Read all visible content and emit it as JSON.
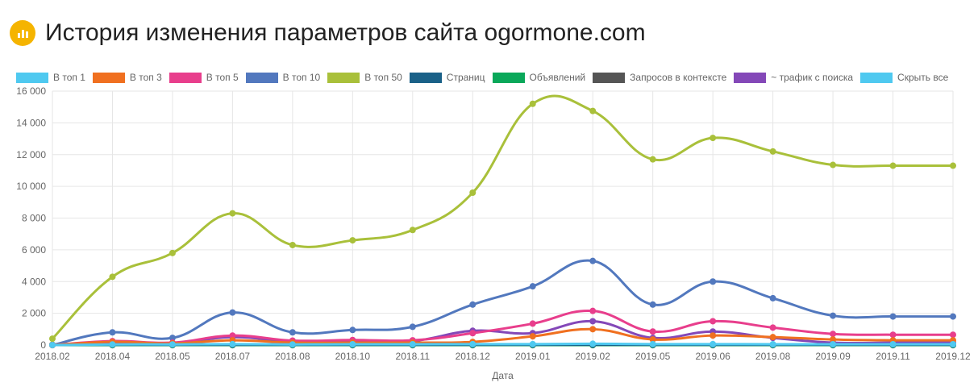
{
  "title": "История изменения параметров сайта ogormone.com",
  "chart_data": {
    "type": "line",
    "title": "История изменения параметров сайта ogormone.com",
    "xlabel": "Дата",
    "ylabel": "",
    "ylim": [
      0,
      16000
    ],
    "yticks": [
      "0",
      "2 000",
      "4 000",
      "6 000",
      "8 000",
      "10 000",
      "12 000",
      "14 000",
      "16 000"
    ],
    "categories": [
      "2018.02",
      "2018.04",
      "2018.05",
      "2018.07",
      "2018.08",
      "2018.10",
      "2018.11",
      "2018.12",
      "2019.01",
      "2019.02",
      "2019.05",
      "2019.06",
      "2019.08",
      "2019.09",
      "2019.11",
      "2019.12"
    ],
    "legend_position": "top",
    "hide_all_label": "Скрыть все",
    "hide_all_color": "#4fc9f0",
    "series": [
      {
        "name": "В топ 1",
        "color": "#4fc9f0",
        "values": [
          0,
          40,
          40,
          60,
          40,
          50,
          50,
          60,
          60,
          80,
          60,
          60,
          50,
          50,
          50,
          50
        ]
      },
      {
        "name": "В топ 3",
        "color": "#f07020",
        "values": [
          0,
          200,
          100,
          300,
          150,
          150,
          150,
          200,
          550,
          1000,
          350,
          600,
          500,
          350,
          300,
          300
        ]
      },
      {
        "name": "В топ 5",
        "color": "#e83e8c",
        "values": [
          0,
          250,
          150,
          600,
          280,
          320,
          300,
          750,
          1350,
          2150,
          850,
          1500,
          1100,
          700,
          650,
          650
        ]
      },
      {
        "name": "В топ 10",
        "color": "#5278be",
        "values": [
          0,
          800,
          450,
          2050,
          800,
          950,
          1150,
          2550,
          3700,
          5300,
          2550,
          4000,
          2950,
          1850,
          1800,
          1800
        ]
      },
      {
        "name": "В топ 50",
        "color": "#a9c03a",
        "values": [
          400,
          4300,
          5800,
          8300,
          6300,
          6600,
          7250,
          9600,
          15200,
          14750,
          11700,
          13050,
          12200,
          11350,
          11300,
          11300
        ]
      },
      {
        "name": "Страниц",
        "color": "#1a6188",
        "values": [
          20,
          20,
          20,
          20,
          20,
          20,
          20,
          20,
          20,
          20,
          20,
          20,
          20,
          20,
          20,
          20
        ]
      },
      {
        "name": "Объявлений",
        "color": "#0aa85a",
        "values": [
          0,
          0,
          0,
          0,
          0,
          0,
          0,
          0,
          0,
          0,
          0,
          0,
          0,
          0,
          0,
          0
        ]
      },
      {
        "name": "Запросов в контексте",
        "color": "#555555",
        "values": [
          0,
          0,
          0,
          0,
          0,
          0,
          0,
          0,
          0,
          0,
          0,
          0,
          0,
          0,
          0,
          0
        ]
      },
      {
        "name": "~ трафик с поиска",
        "color": "#8448b8",
        "values": [
          0,
          150,
          100,
          500,
          200,
          250,
          250,
          900,
          750,
          1500,
          450,
          850,
          450,
          150,
          150,
          150
        ]
      }
    ]
  }
}
